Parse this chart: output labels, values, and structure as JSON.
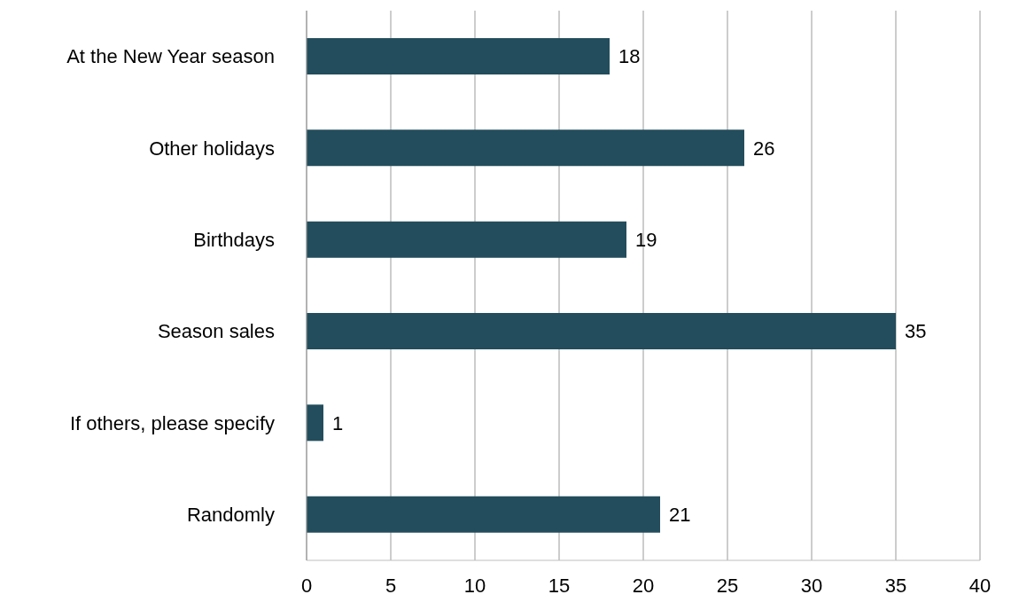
{
  "chart_data": {
    "type": "bar",
    "orientation": "horizontal",
    "categories": [
      "At the New Year season",
      "Other holidays",
      "Birthdays",
      "Season sales",
      "If others, please specify",
      "Randomly"
    ],
    "values": [
      18,
      26,
      19,
      35,
      1,
      21
    ],
    "color": "#234d5c",
    "xlim": [
      0,
      40
    ],
    "xticks": [
      0,
      5,
      10,
      15,
      20,
      25,
      30,
      35,
      40
    ],
    "grid": "x",
    "data_labels": true
  }
}
